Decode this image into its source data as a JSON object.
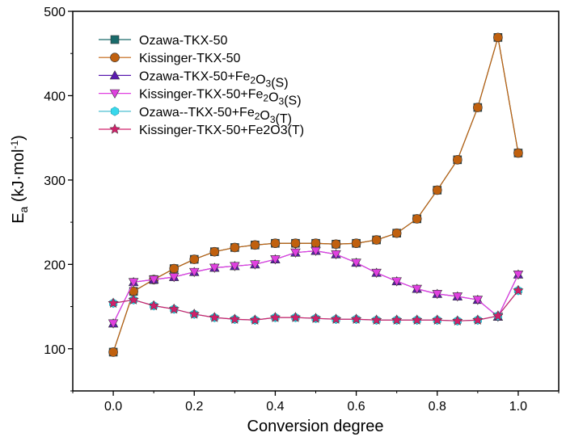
{
  "chart_data": {
    "type": "line",
    "title": "",
    "xlabel": "Conversion degree",
    "ylabel": {
      "main": "E",
      "sub": "a",
      "unit_start": " (kJ·mol",
      "unit_sup": "-1",
      "unit_end": ")"
    },
    "xlim": [
      -0.1,
      1.1
    ],
    "ylim": [
      50,
      500
    ],
    "xticks": [
      0.0,
      0.2,
      0.4,
      0.6,
      0.8,
      1.0
    ],
    "xtick_labels": [
      "0.0",
      "0.2",
      "0.4",
      "0.6",
      "0.8",
      "1.0"
    ],
    "yticks": [
      100,
      200,
      300,
      400,
      500
    ],
    "ytick_labels": [
      "100",
      "200",
      "300",
      "400",
      "500"
    ],
    "grid": false,
    "legend_position": "top-left",
    "x": [
      0.0,
      0.05,
      0.1,
      0.15,
      0.2,
      0.25,
      0.3,
      0.35,
      0.4,
      0.45,
      0.5,
      0.55,
      0.6,
      0.65,
      0.7,
      0.75,
      0.8,
      0.85,
      0.9,
      0.95,
      1.0
    ],
    "series": [
      {
        "name": "Ozawa-TKX-50",
        "legend_parts": [
          [
            "Ozawa-TKX-50",
            ""
          ]
        ],
        "marker": "square",
        "color": "#1a6b6b",
        "line_color": "#1a6b6b",
        "values": [
          96,
          168,
          182,
          195,
          206,
          215,
          220,
          223,
          225,
          225,
          225,
          224,
          225,
          229,
          237,
          254,
          288,
          324,
          386,
          469,
          332
        ]
      },
      {
        "name": "Kissinger-TKX-50",
        "legend_parts": [
          [
            "Kissinger-TKX-50",
            ""
          ]
        ],
        "marker": "circle",
        "color": "#c0600e",
        "line_color": "#c0600e",
        "values": [
          96,
          168,
          182,
          195,
          206,
          215,
          220,
          223,
          225,
          225,
          225,
          224,
          225,
          229,
          237,
          254,
          288,
          324,
          386,
          469,
          332
        ]
      },
      {
        "name": "Ozawa-TKX-50+Fe2O3(S)",
        "legend_parts": [
          [
            "Ozawa-TKX-50+Fe",
            ""
          ],
          [
            "2",
            "sub"
          ],
          [
            "O",
            ""
          ],
          [
            "3",
            "sub"
          ],
          [
            "(S)",
            ""
          ]
        ],
        "marker": "triangle-up",
        "color": "#5a1ab0",
        "line_color": "#5a1ab0",
        "values": [
          130,
          179,
          182,
          185,
          191,
          196,
          198,
          200,
          206,
          214,
          216,
          212,
          202,
          190,
          180,
          171,
          165,
          162,
          158,
          138,
          188
        ]
      },
      {
        "name": "Kissinger-TKX-50+Fe2O3(S)",
        "legend_parts": [
          [
            "Kissinger-TKX-50+Fe",
            ""
          ],
          [
            "2",
            "sub"
          ],
          [
            "O",
            ""
          ],
          [
            "3",
            "sub"
          ],
          [
            "(S)",
            ""
          ]
        ],
        "marker": "triangle-down",
        "color": "#e040e0",
        "line_color": "#e040e0",
        "values": [
          130,
          179,
          182,
          185,
          191,
          196,
          198,
          200,
          206,
          214,
          216,
          212,
          202,
          190,
          180,
          171,
          165,
          162,
          158,
          138,
          188
        ]
      },
      {
        "name": "Ozawa--TKX-50+Fe2O3(T)",
        "legend_parts": [
          [
            "Ozawa--TKX-50+Fe",
            ""
          ],
          [
            "2",
            "sub"
          ],
          [
            "O",
            ""
          ],
          [
            "3",
            "sub"
          ],
          [
            "(T)",
            ""
          ]
        ],
        "marker": "hexagon",
        "color": "#38d8ec",
        "line_color": "#38b8cc",
        "values": [
          154,
          158,
          151,
          147,
          141,
          137,
          135,
          134,
          137,
          137,
          136,
          135,
          135,
          134,
          134,
          134,
          134,
          133,
          134,
          139,
          169
        ]
      },
      {
        "name": "Kissinger-TKX-50+Fe2O3(T)",
        "legend_parts": [
          [
            "Kissinger-TKX-50+Fe2O3(T)",
            ""
          ]
        ],
        "marker": "star",
        "color": "#d0206a",
        "line_color": "#d0206a",
        "values": [
          154,
          158,
          151,
          147,
          141,
          137,
          135,
          134,
          137,
          137,
          136,
          135,
          135,
          134,
          134,
          134,
          134,
          133,
          134,
          139,
          169
        ]
      }
    ]
  }
}
